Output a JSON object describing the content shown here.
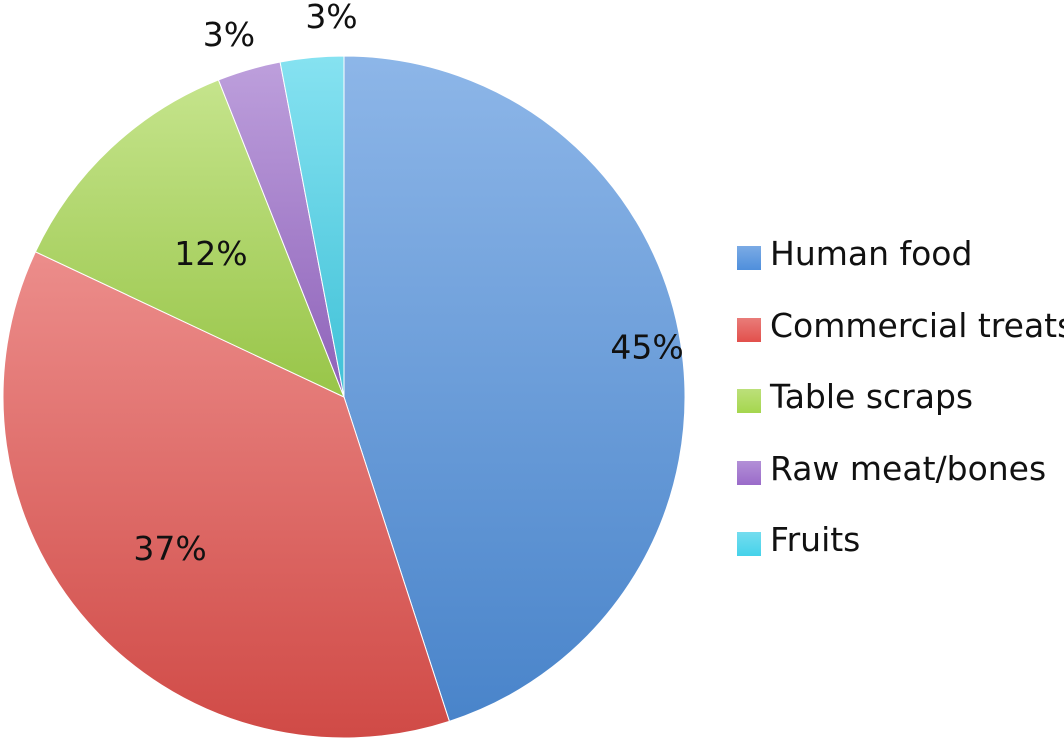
{
  "chart_data": {
    "type": "pie",
    "categories": [
      "Human food",
      "Commercial treats",
      "Table scraps",
      "Raw meat/bones",
      "Fruits"
    ],
    "values": [
      45,
      37,
      12,
      3,
      3
    ],
    "value_labels": [
      "45%",
      "37%",
      "12%",
      "3%",
      "3%"
    ],
    "colors": [
      "#4f8fdc",
      "#e2504c",
      "#a5d64e",
      "#9a6bc9",
      "#45d2ea"
    ],
    "legend_position": "right"
  }
}
